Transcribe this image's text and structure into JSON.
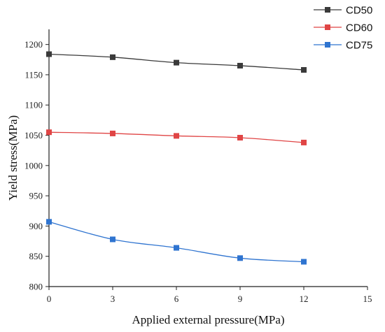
{
  "chart_data": {
    "type": "line",
    "xlabel": "Applied external pressure(MPa)",
    "ylabel": "Yield stress(MPa)",
    "xlim": [
      0,
      15
    ],
    "ylim": [
      800,
      1225
    ],
    "x_ticks": [
      0,
      3,
      6,
      9,
      12,
      15
    ],
    "y_ticks": [
      800,
      850,
      900,
      950,
      1000,
      1050,
      1100,
      1150,
      1200
    ],
    "grid": false,
    "legend_position": "top-right",
    "x": [
      0,
      3,
      6,
      9,
      12
    ],
    "series": [
      {
        "name": "CD50",
        "color": "#3a3a3a",
        "marker": "square",
        "values": [
          1184,
          1179,
          1170,
          1165,
          1158
        ]
      },
      {
        "name": "CD60",
        "color": "#e04545",
        "marker": "square",
        "values": [
          1055,
          1053,
          1049,
          1046,
          1038
        ]
      },
      {
        "name": "CD75",
        "color": "#2f74d0",
        "marker": "square",
        "values": [
          907,
          878,
          864,
          847,
          841
        ]
      }
    ]
  }
}
